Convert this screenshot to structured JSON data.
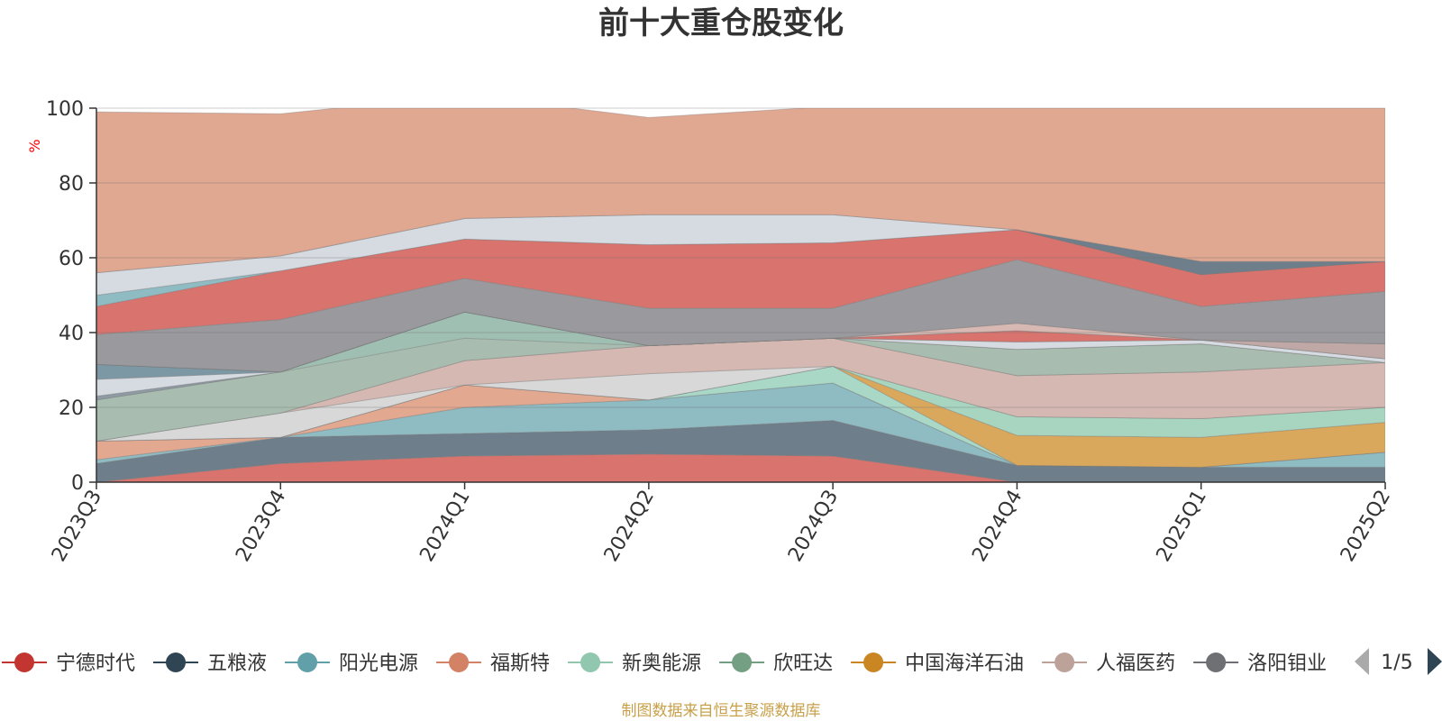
{
  "chart_data": {
    "type": "area",
    "stacked": true,
    "title": "前十大重仓股变化",
    "ylabel": "%",
    "ylim": [
      0,
      100
    ],
    "yticks": [
      0,
      20,
      40,
      60,
      80,
      100
    ],
    "grid": true,
    "legend_position": "bottom",
    "legend_page": "1/5",
    "source": "制图数据来自恒生聚源数据库",
    "categories": [
      "2023Q3",
      "2023Q4",
      "2024Q1",
      "2024Q2",
      "2024Q3",
      "2024Q4",
      "2025Q1",
      "2025Q2"
    ],
    "band_values": [
      [
        0.0,
        5.0,
        7.0,
        7.5,
        7.0,
        0.0,
        0.0,
        0.0
      ],
      [
        5.0,
        7.0,
        6.0,
        6.5,
        9.5,
        4.5,
        4.0,
        4.0
      ],
      [
        1.0,
        0.0,
        7.0,
        8.0,
        10.0,
        0.0,
        0.0,
        4.0
      ],
      [
        5.0,
        0.0,
        6.0,
        0.0,
        0.0,
        0.0,
        0.0,
        0.0
      ],
      [
        0.0,
        0.0,
        0.0,
        0.0,
        4.5,
        0.0,
        0.0,
        0.0
      ],
      [
        0.0,
        0.0,
        0.0,
        0.0,
        0.0,
        8.0,
        8.0,
        8.0
      ],
      [
        0.0,
        0.0,
        0.0,
        0.0,
        0.0,
        5.0,
        5.0,
        4.0
      ],
      [
        0.0,
        6.5,
        0.0,
        7.0,
        0.0,
        0.0,
        0.0,
        0.0
      ],
      [
        0.0,
        0.0,
        6.5,
        7.5,
        7.5,
        11.0,
        12.5,
        12.0
      ],
      [
        0.0,
        0.0,
        0.0,
        0.0,
        0.0,
        0.0,
        0.0,
        0.0
      ],
      [
        11.0,
        11.0,
        6.0,
        0.0,
        0.0,
        7.0,
        7.5,
        0.0
      ],
      [
        0.0,
        0.0,
        7.0,
        0.0,
        0.0,
        0.0,
        0.0,
        0.0
      ],
      [
        1.0,
        0.0,
        0.0,
        0.0,
        0.0,
        0.0,
        0.0,
        0.0
      ],
      [
        4.5,
        0.0,
        0.0,
        0.0,
        0.0,
        2.0,
        1.0,
        1.0
      ],
      [
        4.0,
        0.0,
        0.0,
        0.0,
        0.0,
        0.0,
        0.0,
        0.0
      ],
      [
        0.0,
        0.0,
        0.0,
        0.0,
        0.0,
        3.0,
        0.0,
        0.0
      ],
      [
        0.0,
        0.0,
        0.0,
        0.0,
        0.0,
        0.0,
        0.0,
        4.0
      ],
      [
        0.0,
        0.0,
        0.0,
        0.0,
        0.0,
        2.0,
        0.0,
        0.0
      ],
      [
        0.0,
        0.0,
        0.0,
        0.0,
        0.0,
        0.0,
        0.0,
        0.0
      ],
      [
        8.0,
        14.0,
        9.0,
        10.0,
        8.0,
        17.0,
        9.0,
        14.0
      ],
      [
        7.5,
        13.0,
        10.5,
        17.0,
        17.5,
        8.0,
        8.5,
        8.0
      ],
      [
        3.0,
        0.0,
        0.0,
        0.0,
        0.0,
        0.0,
        0.0,
        0.0
      ],
      [
        6.0,
        4.0,
        5.5,
        8.0,
        7.5,
        0.0,
        0.0,
        0.0
      ],
      [
        0.0,
        0.0,
        0.0,
        0.0,
        0.0,
        0.0,
        3.5,
        0.0
      ],
      [
        43.0,
        38.0,
        33.0,
        26.0,
        29.0,
        38.0,
        43.0,
        42.0
      ]
    ],
    "band_colors": [
      "#d9736e",
      "#6e7e8a",
      "#8fbbc3",
      "#e3a890",
      "#a9d8c7",
      "#d9a85c",
      "#a8d5c0",
      "#d8d8d8",
      "#d6b8b2",
      "#aacfc0",
      "#a8bdb0",
      "#9fbfb3",
      "#8e9aa4",
      "#d6dbe2",
      "#7c98a4",
      "#d9736e",
      "#bfa8a6",
      "#d8b8b2",
      "#dba270",
      "#9a9a9e",
      "#d9736e",
      "#8fbbc3",
      "#d6dbe2",
      "#6e7e8a",
      "#e0a791"
    ],
    "legend": [
      {
        "name": "宁德时代",
        "color": "#c23531"
      },
      {
        "name": "五粮液",
        "color": "#2f4554"
      },
      {
        "name": "阳光电源",
        "color": "#61a0a8"
      },
      {
        "name": "福斯特",
        "color": "#d48265"
      },
      {
        "name": "新奥能源",
        "color": "#91c7ae"
      },
      {
        "name": "欣旺达",
        "color": "#749f83"
      },
      {
        "name": "中国海洋石油",
        "color": "#ca8622"
      },
      {
        "name": "人福医药",
        "color": "#bda29a"
      },
      {
        "name": "洛阳钼业",
        "color": "#6e7074"
      }
    ]
  }
}
